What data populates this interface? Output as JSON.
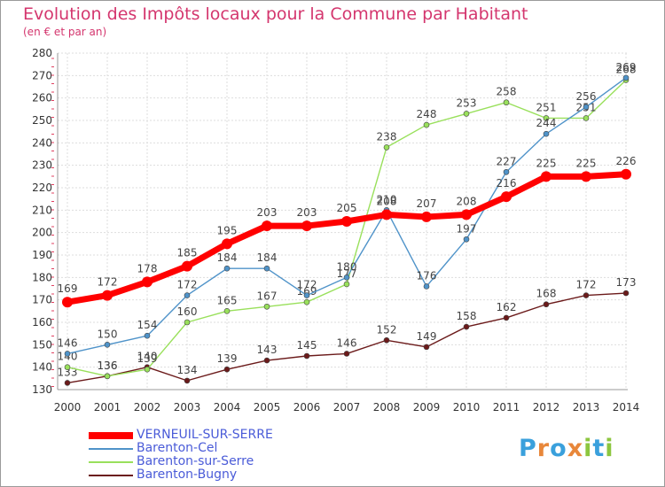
{
  "header": {
    "title": "Evolution des Impôts locaux pour la Commune par Habitant",
    "subtitle": "(en € et par an)"
  },
  "chart_data": {
    "type": "line",
    "title": "Evolution des Impôts locaux pour la Commune par Habitant",
    "subtitle": "(en € et par an)",
    "x": [
      "2000",
      "2001",
      "2002",
      "2003",
      "2004",
      "2005",
      "2006",
      "2007",
      "2008",
      "2009",
      "2010",
      "2011",
      "2012",
      "2013",
      "2014"
    ],
    "ylim": [
      130,
      280
    ],
    "yticks": [
      130,
      140,
      150,
      160,
      170,
      180,
      190,
      200,
      210,
      220,
      230,
      240,
      250,
      260,
      270,
      280
    ],
    "grid": true,
    "legend_position": "bottom-left",
    "series": [
      {
        "name": "VERNEUIL-SUR-SERRE",
        "color": "#ff0000",
        "values": [
          169,
          172,
          178,
          185,
          195,
          203,
          203,
          205,
          208,
          207,
          208,
          216,
          225,
          225,
          226
        ]
      },
      {
        "name": "Barenton-Cel",
        "color": "#4f93c9",
        "values": [
          146,
          150,
          154,
          172,
          184,
          184,
          172,
          180,
          210,
          176,
          197,
          227,
          244,
          256,
          269
        ]
      },
      {
        "name": "Barenton-sur-Serre",
        "color": "#99e05b",
        "values": [
          140,
          136,
          139,
          160,
          165,
          167,
          169,
          177,
          238,
          248,
          253,
          258,
          251,
          251,
          268
        ]
      },
      {
        "name": "Barenton-Bugny",
        "color": "#6b1a1a",
        "values": [
          133,
          136,
          140,
          134,
          139,
          143,
          145,
          146,
          152,
          149,
          158,
          162,
          168,
          172,
          173
        ]
      }
    ]
  },
  "logo": {
    "letters": [
      "P",
      "r",
      "o",
      "x",
      "i",
      "t",
      "i"
    ],
    "colors": [
      "#3aa0dc",
      "#e8873a",
      "#3aa0dc",
      "#e8873a",
      "#8cc63f",
      "#3aa0dc",
      "#8cc63f"
    ]
  }
}
